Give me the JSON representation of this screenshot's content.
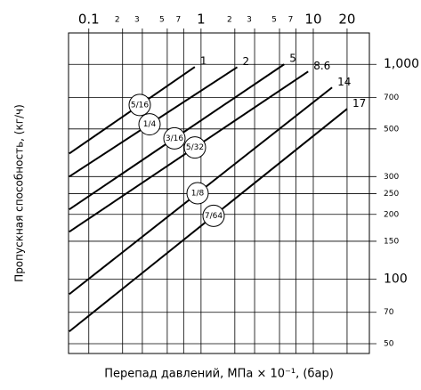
{
  "chart_data": {
    "type": "line",
    "log_x": true,
    "log_y": true,
    "grid": true,
    "x_label": "Перепад давлений, МПа × 10⁻¹, (бар)",
    "y_label": "Пропускная способность, (кг/ч)",
    "xlim": [
      0.066,
      31.6
    ],
    "ylim": [
      45,
      1400
    ],
    "xticks": [
      0.1,
      {
        "value": 0.2,
        "label": "2"
      },
      {
        "value": 0.3,
        "label": "3"
      },
      {
        "value": 0.5,
        "label": "5"
      },
      {
        "value": 0.7,
        "label": "7"
      },
      1,
      2,
      3,
      5,
      7,
      10,
      20
    ],
    "yticks": [
      50,
      70,
      100,
      150,
      200,
      250,
      300,
      500,
      700,
      {
        "value": 1000,
        "label": "1,000"
      }
    ],
    "series": [
      {
        "name": "1",
        "size": "5/16",
        "color": "#000000",
        "x": [
          0.067,
          0.88
        ],
        "values": [
          384,
          972
        ]
      },
      {
        "name": "2",
        "size": "1/4",
        "color": "#000000",
        "x": [
          0.067,
          2.1
        ],
        "values": [
          300,
          970
        ]
      },
      {
        "name": "5",
        "size": "3/16",
        "color": "#000000",
        "x": [
          0.067,
          5.5
        ],
        "values": [
          211,
          1000
        ]
      },
      {
        "name": "8.6",
        "size": "5/32",
        "color": "#000000",
        "x": [
          0.067,
          9
        ],
        "values": [
          166,
          926
        ]
      },
      {
        "name": "14",
        "size": "1/8",
        "color": "#000000",
        "x": [
          0.067,
          14.7
        ],
        "values": [
          85,
          780
        ]
      },
      {
        "name": "17",
        "size": "7/64",
        "color": "#000000",
        "x": [
          0.067,
          20
        ],
        "values": [
          57,
          620
        ]
      }
    ]
  }
}
